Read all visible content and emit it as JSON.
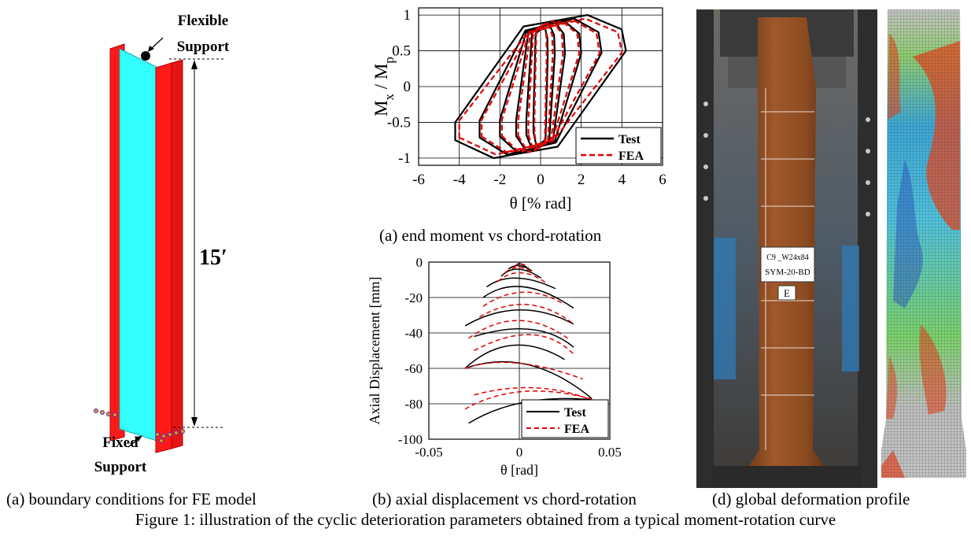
{
  "panel_a": {
    "label_flexible": "Flexible",
    "label_flexible2": "Support",
    "label_fixed": "Fixed",
    "label_fixed2": "Support",
    "length_label": "15′",
    "caption": "(a) boundary conditions for FE model",
    "colors": {
      "flange": "#ff1a1a",
      "web": "#33ffff"
    }
  },
  "panel_moment": {
    "caption": "(a) end moment vs chord-rotation",
    "chart_data": {
      "type": "line",
      "xlabel": "θ [% rad]",
      "ylabel_main": "M",
      "ylabel_sub1": "x",
      "ylabel_mid": " / M",
      "ylabel_sub2": "p",
      "xlim": [
        -6,
        6
      ],
      "ylim": [
        -1.1,
        1.1
      ],
      "xticks": [
        -6,
        -4,
        -2,
        0,
        2,
        4,
        6
      ],
      "yticks": [
        -1,
        -0.5,
        0,
        0.5,
        1
      ],
      "xtick_labels": [
        "-6",
        "-4",
        "-2",
        "0",
        "2",
        "4",
        "6"
      ],
      "ytick_labels": [
        "-1",
        "-0.5",
        "0",
        "0.5",
        "1"
      ],
      "grid": true,
      "legend": "bottom-right",
      "series": [
        {
          "name": "Test",
          "color": "#000000",
          "dash": "solid",
          "loops": [
            {
              "amp": 4.2,
              "m": 1.0,
              "lean": 0.2,
              "w": 0.55
            },
            {
              "amp": 3.0,
              "m": 0.95,
              "lean": 0.25,
              "w": 0.6
            },
            {
              "amp": 2.0,
              "m": 0.93,
              "lean": 0.35,
              "w": 0.6
            },
            {
              "amp": 1.2,
              "m": 0.92,
              "lean": 0.5,
              "w": 0.55
            },
            {
              "amp": 0.7,
              "m": 0.9,
              "lean": 0.6,
              "w": 0.45
            },
            {
              "amp": 0.35,
              "m": 0.85,
              "lean": 0.7,
              "w": 0.35
            }
          ]
        },
        {
          "name": "FEA",
          "color": "#e00000",
          "dash": "dashed",
          "loops": [
            {
              "amp": 4.0,
              "m": 0.95,
              "lean": 0.15,
              "w": 0.7
            },
            {
              "amp": 2.9,
              "m": 0.93,
              "lean": 0.2,
              "w": 0.7
            },
            {
              "amp": 1.9,
              "m": 0.92,
              "lean": 0.3,
              "w": 0.65
            },
            {
              "amp": 1.1,
              "m": 0.92,
              "lean": 0.45,
              "w": 0.55
            },
            {
              "amp": 0.6,
              "m": 0.9,
              "lean": 0.6,
              "w": 0.45
            },
            {
              "amp": 0.3,
              "m": 0.88,
              "lean": 0.7,
              "w": 0.35
            }
          ]
        }
      ]
    }
  },
  "panel_axial": {
    "caption": "(b) axial displacement vs chord-rotation",
    "chart_data": {
      "type": "line",
      "xlabel": "θ [rad]",
      "ylabel": "Axial Displacement [mm]",
      "xlim": [
        -0.05,
        0.05
      ],
      "ylim": [
        -100,
        0
      ],
      "xticks": [
        -0.05,
        0,
        0.05
      ],
      "yticks": [
        -100,
        -80,
        -60,
        -40,
        -20,
        0
      ],
      "xtick_labels": [
        "-0.05",
        "0",
        "0.05"
      ],
      "ytick_labels": [
        "-100",
        "-80",
        "-60",
        "-40",
        "-20",
        "0"
      ],
      "grid": true,
      "legend": "bottom-right",
      "series": [
        {
          "name": "Test",
          "color": "#000000",
          "dash": "solid",
          "arcs": [
            {
              "x0": -0.002,
              "y0": -2,
              "xp": 0.0,
              "yp": -1,
              "x1": 0.004,
              "y1": -3
            },
            {
              "x0": -0.006,
              "y0": -4,
              "xp": -0.001,
              "yp": -2,
              "x1": 0.007,
              "y1": -5
            },
            {
              "x0": -0.01,
              "y0": -8,
              "xp": -0.002,
              "yp": -4,
              "x1": 0.012,
              "y1": -9
            },
            {
              "x0": -0.018,
              "y0": -14,
              "xp": -0.004,
              "yp": -9,
              "x1": 0.02,
              "y1": -15
            },
            {
              "x0": -0.02,
              "y0": -20,
              "xp": 0.0,
              "yp": -14,
              "x1": 0.03,
              "y1": -26
            },
            {
              "x0": -0.03,
              "y0": -36,
              "xp": 0.0,
              "yp": -27,
              "x1": 0.03,
              "y1": -35
            },
            {
              "x0": -0.025,
              "y0": -42,
              "xp": 0.01,
              "yp": -38,
              "x1": 0.03,
              "y1": -48
            },
            {
              "x0": -0.03,
              "y0": -60,
              "xp": -0.005,
              "yp": -47,
              "x1": 0.025,
              "y1": -55
            },
            {
              "x0": -0.03,
              "y0": -60,
              "xp": 0.005,
              "yp": -58,
              "x1": 0.04,
              "y1": -77
            },
            {
              "x0": -0.028,
              "y0": -91,
              "xp": 0.0,
              "yp": -79,
              "x1": 0.042,
              "y1": -78
            }
          ]
        },
        {
          "name": "FEA",
          "color": "#e00000",
          "dash": "dashed",
          "arcs": [
            {
              "x0": -0.003,
              "y0": -3,
              "xp": 0.0,
              "yp": -1,
              "x1": 0.005,
              "y1": -3
            },
            {
              "x0": -0.008,
              "y0": -6,
              "xp": 0.0,
              "yp": -3,
              "x1": 0.008,
              "y1": -7
            },
            {
              "x0": -0.012,
              "y0": -11,
              "xp": 0.0,
              "yp": -6,
              "x1": 0.015,
              "y1": -12
            },
            {
              "x0": -0.02,
              "y0": -25,
              "xp": 0.002,
              "yp": -17,
              "x1": 0.025,
              "y1": -24
            },
            {
              "x0": -0.022,
              "y0": -31,
              "xp": 0.005,
              "yp": -24,
              "x1": 0.03,
              "y1": -35
            },
            {
              "x0": -0.028,
              "y0": -43,
              "xp": 0.0,
              "yp": -33,
              "x1": 0.028,
              "y1": -44
            },
            {
              "x0": -0.025,
              "y0": -50,
              "xp": 0.01,
              "yp": -41,
              "x1": 0.03,
              "y1": -52
            },
            {
              "x0": -0.03,
              "y0": -60,
              "xp": -0.005,
              "yp": -57,
              "x1": 0.035,
              "y1": -66
            },
            {
              "x0": -0.025,
              "y0": -75,
              "xp": 0.01,
              "yp": -71,
              "x1": 0.04,
              "y1": -78
            },
            {
              "x0": -0.03,
              "y0": -83,
              "xp": 0.0,
              "yp": -73,
              "x1": 0.042,
              "y1": -78
            }
          ]
        }
      ]
    }
  },
  "panel_photo": {
    "label_line1": "C9 _W24x84",
    "label_line2": "SYM-20-BD",
    "label_e": "E",
    "caption": "(d) global deformation profile"
  },
  "figure_caption": "Figure 1: illustration of the cyclic deterioration parameters obtained from a typical moment-rotation curve"
}
